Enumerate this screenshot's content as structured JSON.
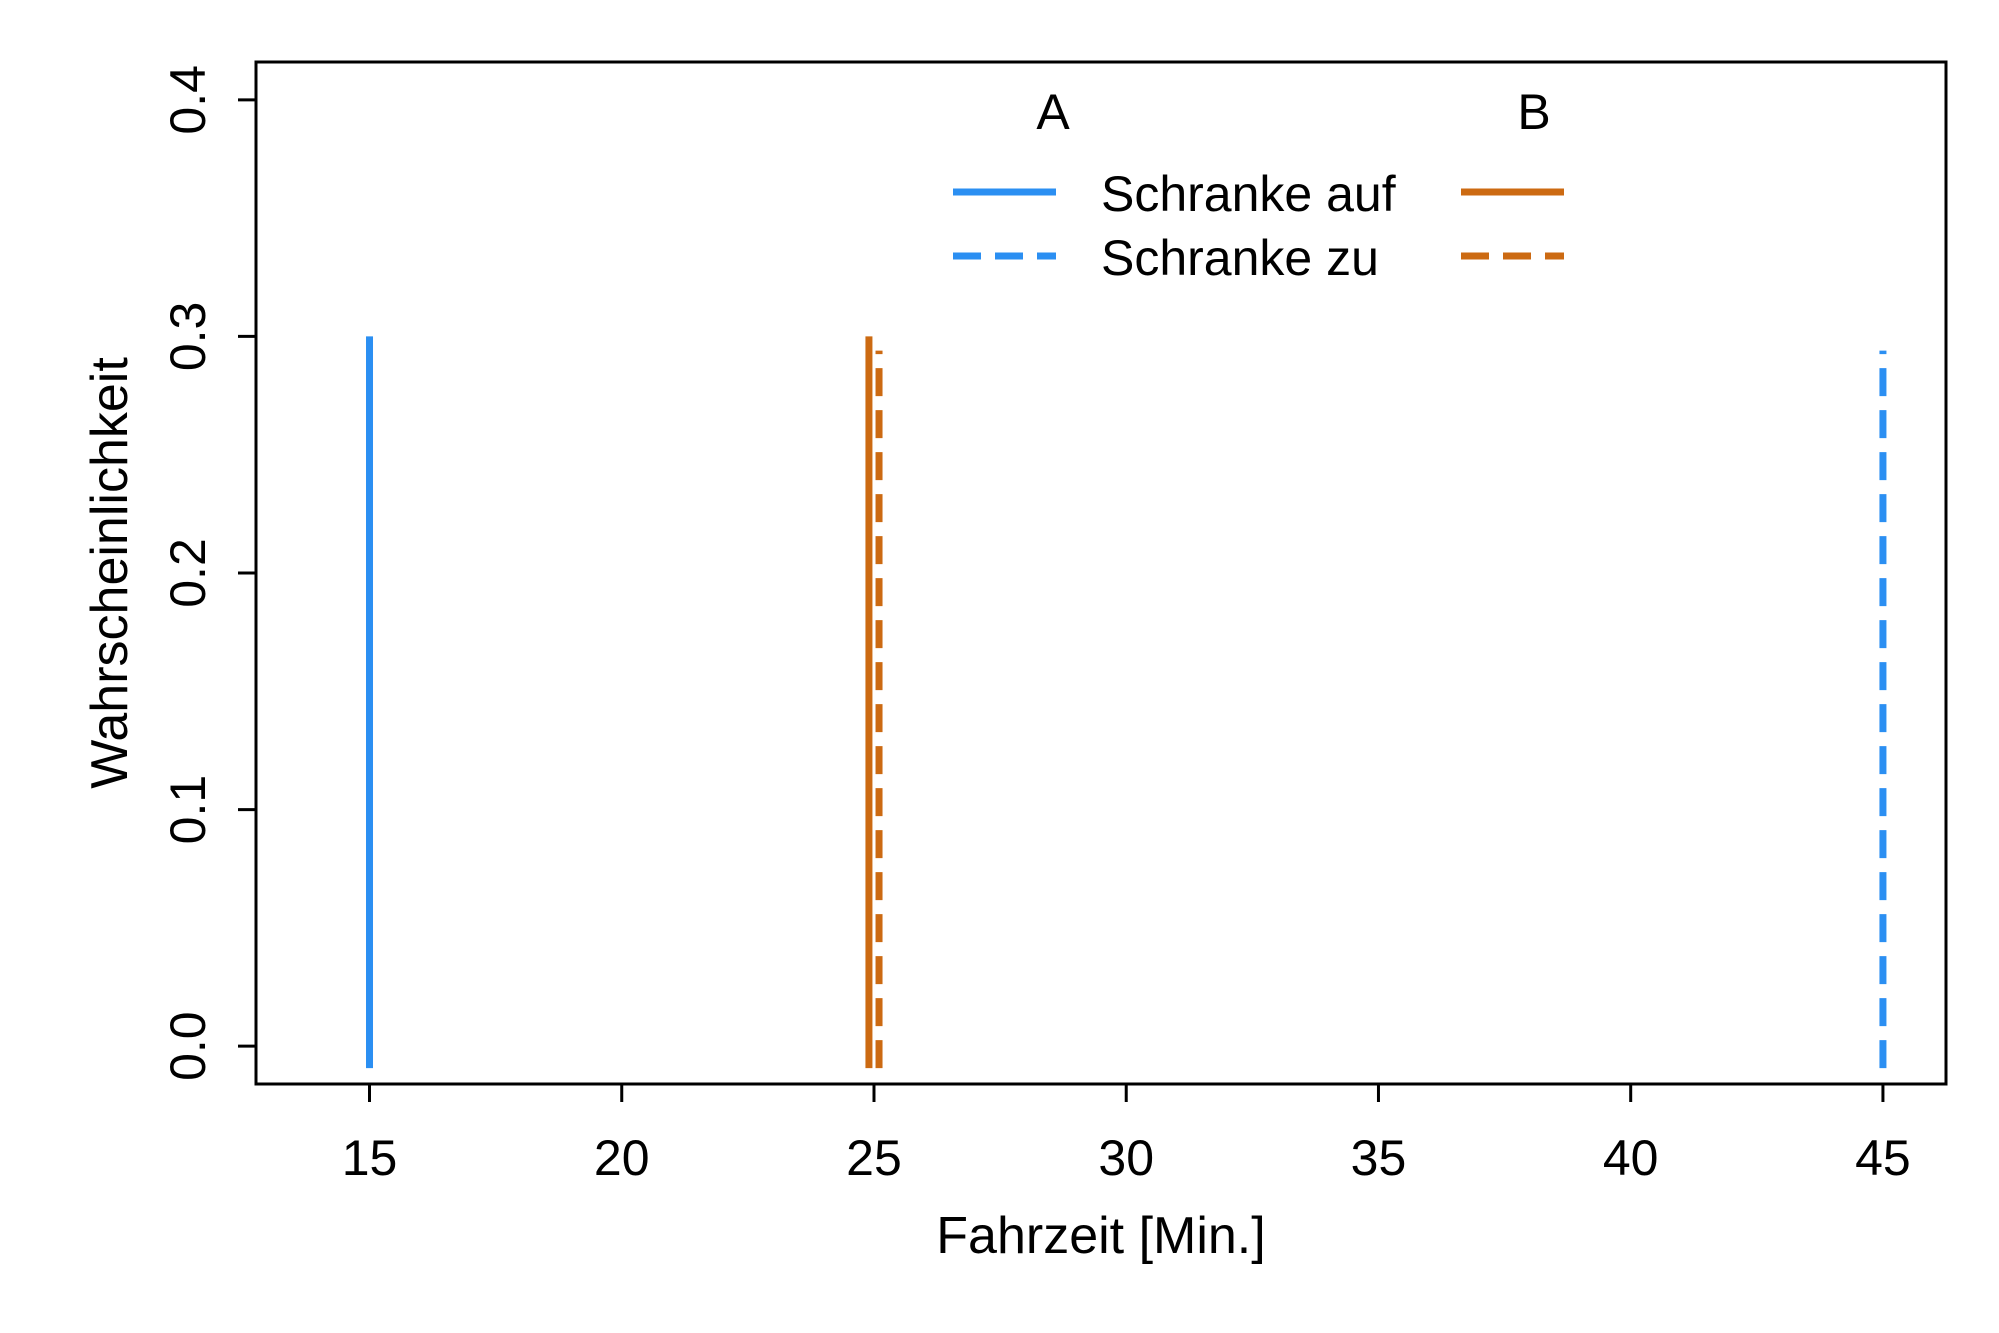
{
  "chart_data": {
    "type": "line",
    "subtype": "vertical-spikes",
    "title": "",
    "xlabel": "Fahrzeit [Min.]",
    "ylabel": "Wahrscheinlichkeit",
    "xlim": [
      12.75,
      46.25
    ],
    "ylim": [
      -0.016,
      0.416
    ],
    "xticks": [
      15,
      20,
      25,
      30,
      35,
      40,
      45
    ],
    "yticks": [
      0.0,
      0.1,
      0.2,
      0.3,
      0.4
    ],
    "ytick_labels": [
      "0.0",
      "0.1",
      "0.2",
      "0.3",
      "0.4"
    ],
    "grid": false,
    "legend_position": "top-center",
    "legend": {
      "group_headers": [
        "A",
        "B"
      ],
      "row_labels": [
        "Schranke auf",
        "Schranke zu"
      ]
    },
    "colors": {
      "A": "#2b8ff2",
      "B": "#cc6a12"
    },
    "series": [
      {
        "group": "A",
        "style": "solid",
        "points": [
          {
            "x": 15,
            "y": 0.3
          }
        ]
      },
      {
        "group": "A",
        "style": "dashed",
        "points": [
          {
            "x": 45,
            "y": 0.294
          }
        ]
      },
      {
        "group": "B",
        "style": "solid",
        "points": [
          {
            "x": 24.9,
            "y": 0.3
          }
        ]
      },
      {
        "group": "B",
        "style": "dashed",
        "points": [
          {
            "x": 25.1,
            "y": 0.294
          }
        ]
      }
    ]
  }
}
